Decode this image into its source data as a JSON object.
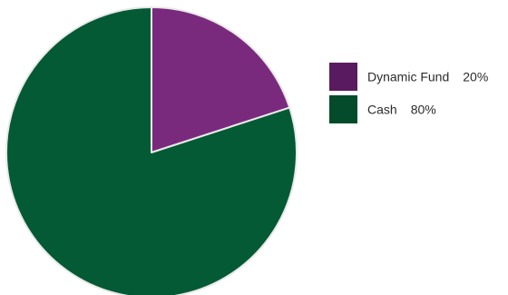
{
  "chart_data": {
    "type": "pie",
    "title": "",
    "slices": [
      {
        "label": "Dynamic Fund",
        "value": 20,
        "display": "20%",
        "color": "#7a2a7c",
        "legend_color": "#5a1a5f"
      },
      {
        "label": "Cash",
        "value": 80,
        "display": "80%",
        "color": "#035a35",
        "legend_color": "#034b2b"
      }
    ],
    "start_angle_deg": 0,
    "direction": "clockwise",
    "slice_border_color": "#e9e9e9",
    "legend_position": "right"
  }
}
